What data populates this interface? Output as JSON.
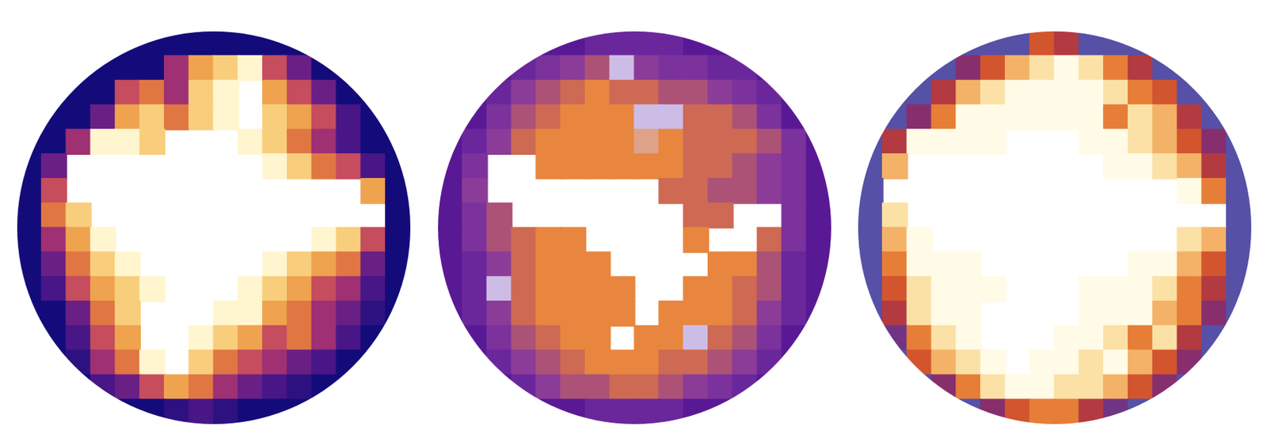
{
  "chart_data": [
    {
      "type": "heatmap",
      "tick_labels": false,
      "xlim": [
        0,
        16
      ],
      "ylim": [
        0,
        16
      ],
      "color_range": [
        0,
        9
      ],
      "cells": [
        [
          null,
          null,
          null,
          null,
          0,
          0,
          0,
          0,
          0,
          0,
          0,
          0,
          null,
          null,
          null,
          null
        ],
        [
          null,
          null,
          0,
          0,
          0,
          0,
          4,
          7,
          8,
          9,
          5,
          3,
          0,
          0,
          null,
          null
        ],
        [
          null,
          0,
          0,
          0,
          5,
          6,
          4,
          8,
          9,
          null,
          7,
          5,
          3,
          0,
          0,
          null
        ],
        [
          null,
          0,
          0,
          3,
          7,
          8,
          6,
          8,
          9,
          null,
          8,
          7,
          5,
          2,
          0,
          null
        ],
        [
          0,
          0,
          4,
          9,
          9,
          8,
          null,
          null,
          null,
          9,
          8,
          6,
          4,
          2,
          0,
          0
        ],
        [
          0,
          3,
          null,
          null,
          null,
          null,
          null,
          null,
          null,
          null,
          9,
          8,
          6,
          5,
          2,
          0
        ],
        [
          0,
          5,
          null,
          null,
          null,
          null,
          null,
          null,
          null,
          null,
          null,
          null,
          null,
          null,
          7,
          0
        ],
        [
          0,
          6,
          8,
          null,
          null,
          null,
          null,
          null,
          null,
          null,
          null,
          null,
          null,
          null,
          null,
          0
        ],
        [
          0,
          4,
          7,
          9,
          null,
          null,
          null,
          null,
          null,
          null,
          null,
          null,
          9,
          8,
          5,
          0
        ],
        [
          0,
          3,
          6,
          8,
          9,
          null,
          null,
          null,
          null,
          null,
          9,
          8,
          7,
          6,
          3,
          0
        ],
        [
          0,
          2,
          5,
          7,
          8,
          9,
          null,
          null,
          null,
          9,
          8,
          7,
          5,
          4,
          2,
          0
        ],
        [
          0,
          0,
          3,
          6,
          8,
          null,
          null,
          null,
          9,
          9,
          7,
          6,
          4,
          3,
          1,
          0
        ],
        [
          null,
          0,
          2,
          5,
          7,
          null,
          null,
          9,
          8,
          7,
          5,
          6,
          4,
          2,
          0,
          null
        ],
        [
          null,
          0,
          1,
          4,
          6,
          9,
          null,
          8,
          6,
          5,
          4,
          3,
          2,
          0,
          0,
          null
        ],
        [
          null,
          null,
          0,
          2,
          3,
          5,
          7,
          6,
          4,
          3,
          2,
          1,
          0,
          0,
          null,
          null
        ],
        [
          null,
          null,
          null,
          null,
          0,
          0,
          1,
          2,
          1,
          0,
          0,
          0,
          null,
          null,
          null,
          null
        ]
      ]
    },
    {
      "type": "heatmap",
      "tick_labels": false,
      "xlim": [
        0,
        16
      ],
      "ylim": [
        0,
        16
      ],
      "color_range": [
        0,
        9
      ],
      "cells": [
        [
          null,
          null,
          null,
          null,
          1,
          1,
          2,
          2,
          2,
          2,
          1,
          1,
          null,
          null,
          null,
          null
        ],
        [
          null,
          null,
          1,
          2,
          3,
          4,
          5,
          9,
          4,
          3,
          3,
          2,
          2,
          1,
          null,
          null
        ],
        [
          null,
          1,
          2,
          4,
          5,
          6,
          7,
          6,
          6,
          5,
          5,
          4,
          3,
          2,
          1,
          null
        ],
        [
          null,
          1,
          3,
          5,
          6,
          7,
          7,
          7,
          9,
          9,
          6,
          6,
          5,
          3,
          1,
          null
        ],
        [
          1,
          2,
          4,
          6,
          7,
          7,
          7,
          7,
          8,
          7,
          6,
          6,
          6,
          5,
          3,
          1
        ],
        [
          1,
          3,
          null,
          null,
          7,
          7,
          7,
          7,
          7,
          7,
          6,
          6,
          5,
          4,
          3,
          1
        ],
        [
          1,
          4,
          null,
          null,
          null,
          null,
          null,
          null,
          null,
          6,
          6,
          5,
          5,
          4,
          3,
          1
        ],
        [
          1,
          3,
          5,
          null,
          null,
          null,
          null,
          null,
          null,
          null,
          6,
          6,
          null,
          null,
          3,
          1
        ],
        [
          1,
          3,
          5,
          6,
          7,
          7,
          null,
          null,
          null,
          null,
          7,
          null,
          null,
          6,
          3,
          1
        ],
        [
          1,
          2,
          4,
          6,
          7,
          7,
          7,
          null,
          null,
          null,
          null,
          7,
          7,
          5,
          2,
          1
        ],
        [
          1,
          2,
          9,
          6,
          7,
          7,
          7,
          7,
          null,
          null,
          7,
          7,
          6,
          5,
          2,
          1
        ],
        [
          1,
          2,
          4,
          6,
          7,
          7,
          7,
          7,
          null,
          7,
          7,
          7,
          6,
          4,
          2,
          1
        ],
        [
          null,
          1,
          3,
          5,
          6,
          7,
          7,
          null,
          7,
          7,
          9,
          6,
          5,
          3,
          1,
          null
        ],
        [
          null,
          1,
          2,
          4,
          5,
          6,
          7,
          7,
          7,
          6,
          6,
          5,
          4,
          2,
          1,
          null
        ],
        [
          null,
          null,
          1,
          2,
          4,
          5,
          5,
          6,
          6,
          5,
          4,
          3,
          2,
          1,
          null,
          null
        ],
        [
          null,
          null,
          null,
          null,
          1,
          1,
          2,
          2,
          2,
          2,
          1,
          1,
          null,
          null,
          null,
          null
        ]
      ]
    },
    {
      "type": "heatmap",
      "tick_labels": false,
      "xlim": [
        0,
        16
      ],
      "ylim": [
        0,
        16
      ],
      "color_range": [
        0,
        9
      ],
      "cells": [
        [
          null,
          null,
          null,
          null,
          0,
          0,
          0,
          5,
          4,
          0,
          0,
          0,
          null,
          null,
          null,
          null
        ],
        [
          null,
          null,
          0,
          0,
          3,
          5,
          7,
          8,
          9,
          8,
          6,
          4,
          0,
          0,
          null,
          null
        ],
        [
          null,
          0,
          0,
          4,
          7,
          8,
          9,
          9,
          9,
          9,
          8,
          6,
          5,
          0,
          0,
          null
        ],
        [
          null,
          0,
          3,
          6,
          9,
          9,
          9,
          9,
          9,
          9,
          6,
          8,
          7,
          4,
          0,
          null
        ],
        [
          0,
          4,
          9,
          9,
          9,
          9,
          null,
          null,
          null,
          9,
          9,
          8,
          7,
          5,
          3,
          0
        ],
        [
          0,
          7,
          null,
          null,
          null,
          null,
          null,
          null,
          null,
          null,
          9,
          9,
          8,
          7,
          4,
          0
        ],
        [
          0,
          null,
          null,
          null,
          null,
          null,
          null,
          null,
          null,
          null,
          null,
          null,
          null,
          9,
          6,
          0
        ],
        [
          0,
          8,
          null,
          null,
          null,
          null,
          null,
          null,
          null,
          null,
          null,
          null,
          null,
          null,
          null,
          0
        ],
        [
          0,
          7,
          9,
          null,
          null,
          null,
          null,
          null,
          null,
          null,
          null,
          null,
          null,
          8,
          7,
          0
        ],
        [
          0,
          6,
          9,
          9,
          9,
          null,
          null,
          null,
          null,
          null,
          null,
          9,
          9,
          7,
          5,
          0
        ],
        [
          0,
          5,
          8,
          9,
          9,
          9,
          null,
          null,
          null,
          9,
          9,
          9,
          8,
          6,
          4,
          0
        ],
        [
          0,
          4,
          8,
          9,
          9,
          null,
          null,
          null,
          null,
          9,
          9,
          9,
          7,
          6,
          3,
          0
        ],
        [
          null,
          2,
          6,
          8,
          9,
          null,
          null,
          null,
          9,
          9,
          8,
          6,
          8,
          4,
          0,
          null
        ],
        [
          null,
          0,
          5,
          7,
          8,
          9,
          null,
          9,
          9,
          8,
          9,
          7,
          5,
          3,
          0,
          null
        ],
        [
          null,
          null,
          0,
          3,
          6,
          8,
          9,
          9,
          8,
          8,
          7,
          5,
          3,
          0,
          null,
          null
        ],
        [
          null,
          null,
          null,
          null,
          0,
          3,
          5,
          6,
          6,
          4,
          2,
          0,
          null,
          null,
          null,
          null
        ]
      ]
    }
  ]
}
